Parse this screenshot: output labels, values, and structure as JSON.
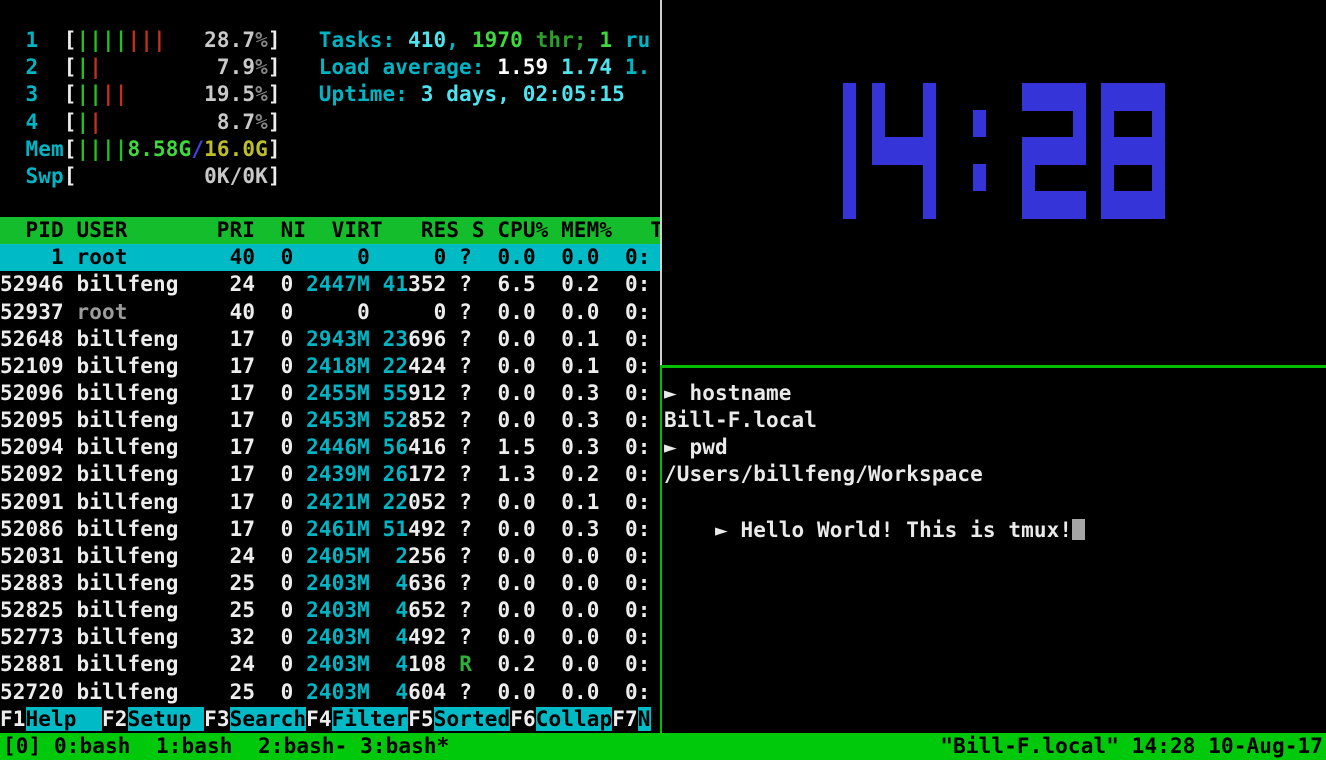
{
  "colors": {
    "background": "#000000",
    "htop_header_bg": "#13bd2b",
    "selection_bg": "#00bac6",
    "tmux_status_bg": "#00c80a",
    "clock_blue": "#3434d8",
    "bar_green": "#23c223",
    "bar_red": "#c5301c",
    "cyan": "#00b4c4",
    "pane_border_inactive": "#d0d0d0",
    "pane_border_active": "#00bd00"
  },
  "htop": {
    "meters": [
      {
        "name": "cpu-meter-1",
        "label": "  1  ",
        "segments": [
          [
            "||||",
            "bgreen"
          ],
          [
            "|||",
            "bred"
          ],
          [
            "   ",
            "white"
          ],
          [
            "28.7",
            "mval"
          ],
          [
            "%",
            "mpct"
          ]
        ]
      },
      {
        "name": "cpu-meter-2",
        "label": "  2  ",
        "segments": [
          [
            "|",
            "bgreen"
          ],
          [
            "|",
            "bred"
          ],
          [
            "         ",
            "white"
          ],
          [
            "7.9",
            "mval"
          ],
          [
            "%",
            "mpct"
          ]
        ]
      },
      {
        "name": "cpu-meter-3",
        "label": "  3  ",
        "segments": [
          [
            "||",
            "bgreen"
          ],
          [
            "||",
            "bred"
          ],
          [
            "      ",
            "white"
          ],
          [
            "19.5",
            "mval"
          ],
          [
            "%",
            "mpct"
          ]
        ]
      },
      {
        "name": "cpu-meter-4",
        "label": "  4  ",
        "segments": [
          [
            "|",
            "bgreen"
          ],
          [
            "|",
            "bred"
          ],
          [
            "         ",
            "white"
          ],
          [
            "8.7",
            "mval"
          ],
          [
            "%",
            "mpct"
          ]
        ]
      },
      {
        "name": "memory-meter",
        "label": "  Mem",
        "segments": [
          [
            "||||",
            "bgreen"
          ],
          [
            "8.58G",
            "greenb"
          ],
          [
            "/",
            "blue"
          ],
          [
            "16.0G",
            "yellow"
          ]
        ]
      },
      {
        "name": "swap-meter",
        "label": "  Swp",
        "segments": [
          [
            "          ",
            "white"
          ],
          [
            "0K/0K",
            "mval"
          ]
        ]
      }
    ],
    "summary": [
      {
        "name": "tasks-line",
        "segments": [
          [
            "Tasks: ",
            "cyan"
          ],
          [
            "410",
            "cyanb"
          ],
          [
            ", ",
            "cyan"
          ],
          [
            "1970",
            "greenb"
          ],
          [
            " thr; ",
            "green"
          ],
          [
            "1",
            "greenb"
          ],
          [
            " ru",
            "cyan"
          ]
        ]
      },
      {
        "name": "load-average-line",
        "segments": [
          [
            "Load average: ",
            "cyan"
          ],
          [
            "1.59 ",
            "whiteb"
          ],
          [
            "1.74 ",
            "cyanb"
          ],
          [
            "1.",
            "cyan"
          ]
        ]
      },
      {
        "name": "uptime-line",
        "segments": [
          [
            "Uptime: ",
            "cyan"
          ],
          [
            "3 days, 02:05:15",
            "cyanb"
          ]
        ]
      }
    ],
    "table_header": "  PID USER       PRI  NI  VIRT   RES S CPU% MEM%   T",
    "processes": [
      {
        "pid": "1",
        "user": "root",
        "pri": "40",
        "ni": "0",
        "virt": "0",
        "res": "0",
        "s": "?",
        "cpu": "0.0",
        "mem": "0.0",
        "time": "0:",
        "selected": true
      },
      {
        "pid": "52946",
        "user": "billfeng",
        "pri": "24",
        "ni": "0",
        "virt": "2447M",
        "res": "41352",
        "s": "?",
        "cpu": "6.5",
        "mem": "0.2",
        "time": "0:"
      },
      {
        "pid": "52937",
        "user": "root",
        "pri": "40",
        "ni": "0",
        "virt": "0",
        "res": "0",
        "s": "?",
        "cpu": "0.0",
        "mem": "0.0",
        "time": "0:",
        "dim_user": true
      },
      {
        "pid": "52648",
        "user": "billfeng",
        "pri": "17",
        "ni": "0",
        "virt": "2943M",
        "res": "23696",
        "s": "?",
        "cpu": "0.0",
        "mem": "0.1",
        "time": "0:"
      },
      {
        "pid": "52109",
        "user": "billfeng",
        "pri": "17",
        "ni": "0",
        "virt": "2418M",
        "res": "22424",
        "s": "?",
        "cpu": "0.0",
        "mem": "0.1",
        "time": "0:"
      },
      {
        "pid": "52096",
        "user": "billfeng",
        "pri": "17",
        "ni": "0",
        "virt": "2455M",
        "res": "55912",
        "s": "?",
        "cpu": "0.0",
        "mem": "0.3",
        "time": "0:"
      },
      {
        "pid": "52095",
        "user": "billfeng",
        "pri": "17",
        "ni": "0",
        "virt": "2453M",
        "res": "52852",
        "s": "?",
        "cpu": "0.0",
        "mem": "0.3",
        "time": "0:"
      },
      {
        "pid": "52094",
        "user": "billfeng",
        "pri": "17",
        "ni": "0",
        "virt": "2446M",
        "res": "56416",
        "s": "?",
        "cpu": "1.5",
        "mem": "0.3",
        "time": "0:"
      },
      {
        "pid": "52092",
        "user": "billfeng",
        "pri": "17",
        "ni": "0",
        "virt": "2439M",
        "res": "26172",
        "s": "?",
        "cpu": "1.3",
        "mem": "0.2",
        "time": "0:"
      },
      {
        "pid": "52091",
        "user": "billfeng",
        "pri": "17",
        "ni": "0",
        "virt": "2421M",
        "res": "22052",
        "s": "?",
        "cpu": "0.0",
        "mem": "0.1",
        "time": "0:"
      },
      {
        "pid": "52086",
        "user": "billfeng",
        "pri": "17",
        "ni": "0",
        "virt": "2461M",
        "res": "51492",
        "s": "?",
        "cpu": "0.0",
        "mem": "0.3",
        "time": "0:"
      },
      {
        "pid": "52031",
        "user": "billfeng",
        "pri": "24",
        "ni": "0",
        "virt": "2405M",
        "res": "2256",
        "s": "?",
        "cpu": "0.0",
        "mem": "0.0",
        "time": "0:"
      },
      {
        "pid": "52883",
        "user": "billfeng",
        "pri": "25",
        "ni": "0",
        "virt": "2403M",
        "res": "4636",
        "s": "?",
        "cpu": "0.0",
        "mem": "0.0",
        "time": "0:"
      },
      {
        "pid": "52825",
        "user": "billfeng",
        "pri": "25",
        "ni": "0",
        "virt": "2403M",
        "res": "4652",
        "s": "?",
        "cpu": "0.0",
        "mem": "0.0",
        "time": "0:"
      },
      {
        "pid": "52773",
        "user": "billfeng",
        "pri": "32",
        "ni": "0",
        "virt": "2403M",
        "res": "4492",
        "s": "?",
        "cpu": "0.0",
        "mem": "0.0",
        "time": "0:"
      },
      {
        "pid": "52881",
        "user": "billfeng",
        "pri": "24",
        "ni": "0",
        "virt": "2403M",
        "res": "4108",
        "s": "R",
        "cpu": "0.2",
        "mem": "0.0",
        "time": "0:"
      },
      {
        "pid": "52720",
        "user": "billfeng",
        "pri": "25",
        "ni": "0",
        "virt": "2403M",
        "res": "4604",
        "s": "?",
        "cpu": "0.0",
        "mem": "0.0",
        "time": "0:"
      }
    ],
    "fkeys": [
      {
        "key": "F1",
        "label": "Help  "
      },
      {
        "key": "F2",
        "label": "Setup "
      },
      {
        "key": "F3",
        "label": "Search"
      },
      {
        "key": "F4",
        "label": "Filter"
      },
      {
        "key": "F5",
        "label": "Sorted"
      },
      {
        "key": "F6",
        "label": "Collap"
      },
      {
        "key": "F7",
        "label": "N"
      }
    ]
  },
  "clock": {
    "time": "14:28"
  },
  "shell": {
    "lines": [
      "► hostname",
      "Bill-F.local",
      "► pwd",
      "/Users/billfeng/Workspace",
      "► Hello World! This is tmux!"
    ]
  },
  "tmux": {
    "left": "[0] 0:bash  1:bash  2:bash- 3:bash*",
    "right": "\"Bill-F.local\" 14:28 10-Aug-17"
  }
}
